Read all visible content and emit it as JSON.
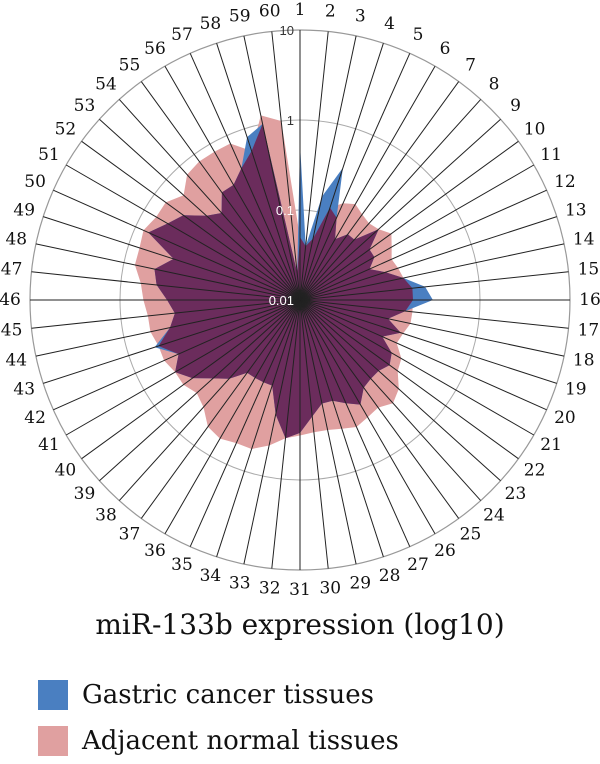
{
  "chart_data": {
    "type": "radar",
    "title": "",
    "xlabel": "miR-133b expression (log10)",
    "scale": "log10",
    "rlim": [
      0.01,
      10
    ],
    "rticks": [
      {
        "value": 0.01,
        "label": "0.01"
      },
      {
        "value": 0.1,
        "label": "0.1"
      },
      {
        "value": 1,
        "label": "1"
      },
      {
        "value": 10,
        "label": "10"
      }
    ],
    "categories": [
      "1",
      "2",
      "3",
      "4",
      "5",
      "6",
      "7",
      "8",
      "9",
      "10",
      "11",
      "12",
      "13",
      "14",
      "15",
      "16",
      "17",
      "18",
      "19",
      "20",
      "21",
      "22",
      "23",
      "24",
      "25",
      "26",
      "27",
      "28",
      "29",
      "30",
      "31",
      "32",
      "33",
      "34",
      "35",
      "36",
      "37",
      "38",
      "39",
      "40",
      "41",
      "42",
      "43",
      "44",
      "45",
      "46",
      "47",
      "48",
      "49",
      "50",
      "51",
      "52",
      "53",
      "54",
      "55",
      "56",
      "57",
      "58",
      "59",
      "60"
    ],
    "series": [
      {
        "name": "Adjacent normal tissues",
        "color": "#e0a0a0",
        "values": [
          0.05,
          0.04,
          0.05,
          0.12,
          0.15,
          0.17,
          0.15,
          0.14,
          0.15,
          0.18,
          0.15,
          0.13,
          0.14,
          0.15,
          0.18,
          0.18,
          0.18,
          0.18,
          0.16,
          0.15,
          0.2,
          0.22,
          0.3,
          0.35,
          0.3,
          0.32,
          0.35,
          0.32,
          0.3,
          0.3,
          0.32,
          0.35,
          0.45,
          0.55,
          0.55,
          0.6,
          0.55,
          0.4,
          0.35,
          0.4,
          0.4,
          0.45,
          0.45,
          0.5,
          0.5,
          0.55,
          0.6,
          0.75,
          0.75,
          0.8,
          0.7,
          0.7,
          0.55,
          0.75,
          0.8,
          0.8,
          0.8,
          0.55,
          1.25,
          1.0
        ]
      },
      {
        "name": "Gastric cancer tissues",
        "color": "#4a7fc1",
        "values": [
          0.55,
          0.04,
          0.15,
          0.35,
          0.1,
          0.06,
          0.08,
          0.08,
          0.15,
          0.09,
          0.09,
          0.07,
          0.1,
          0.15,
          0.25,
          0.3,
          0.15,
          0.1,
          0.15,
          0.1,
          0.15,
          0.17,
          0.15,
          0.15,
          0.16,
          0.22,
          0.18,
          0.15,
          0.15,
          0.2,
          0.3,
          0.35,
          0.2,
          0.1,
          0.1,
          0.1,
          0.1,
          0.15,
          0.2,
          0.3,
          0.4,
          0.3,
          0.5,
          0.3,
          0.25,
          0.3,
          0.4,
          0.45,
          0.3,
          0.7,
          0.5,
          0.4,
          0.25,
          0.2,
          0.3,
          0.3,
          0.4,
          0.8,
          1.0,
          0.02
        ]
      }
    ],
    "overlap_color": "#6b2c5c",
    "legend": [
      {
        "label": "Gastric cancer tissues",
        "color": "#4a7fc1"
      },
      {
        "label": "Adjacent normal tissues",
        "color": "#e0a0a0"
      }
    ]
  }
}
